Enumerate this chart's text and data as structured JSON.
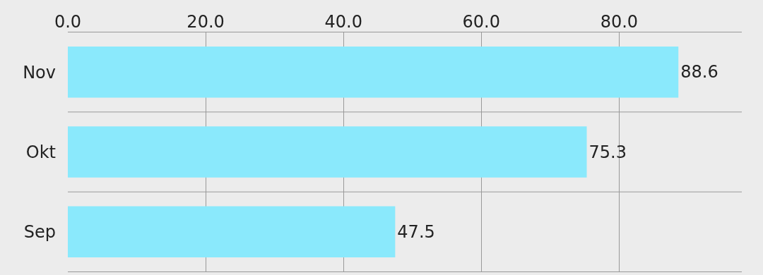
{
  "chart_data": {
    "type": "bar",
    "orientation": "horizontal",
    "categories": [
      "Nov",
      "Okt",
      "Sep"
    ],
    "values": [
      88.6,
      75.3,
      47.5
    ],
    "color": "#8ae9fc",
    "xlim": [
      0,
      97.8
    ],
    "xticks": [
      {
        "value": 0,
        "label": "0.0"
      },
      {
        "value": 20,
        "label": "20.0"
      },
      {
        "value": 40,
        "label": "40.0"
      },
      {
        "value": 60,
        "label": "60.0"
      },
      {
        "value": 80,
        "label": "80.0"
      }
    ],
    "grid": true,
    "data_labels": true
  }
}
